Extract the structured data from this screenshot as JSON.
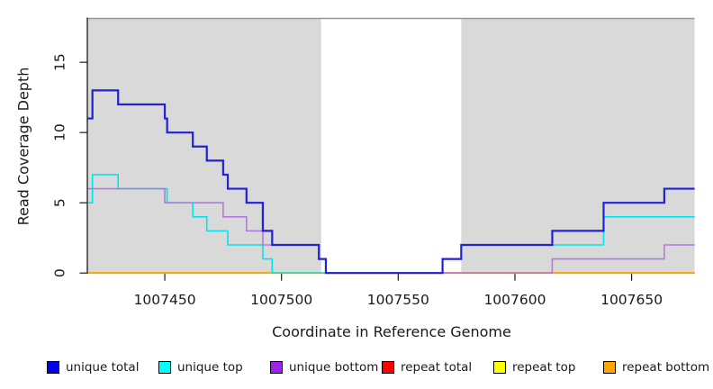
{
  "chart_data": {
    "type": "line",
    "subtype": "step-coverage",
    "title": "",
    "xlabel": "Coordinate in Reference Genome",
    "ylabel": "Read Coverage Depth",
    "xlim": [
      1007417,
      1007677
    ],
    "ylim": [
      0,
      18.15
    ],
    "grid": false,
    "legend_position": "bottom",
    "xticks": [
      {
        "value": 1007450,
        "label": "1007450"
      },
      {
        "value": 1007500,
        "label": "1007500"
      },
      {
        "value": 1007550,
        "label": "1007550"
      },
      {
        "value": 1007600,
        "label": "1007600"
      },
      {
        "value": 1007650,
        "label": "1007650"
      }
    ],
    "yticks": [
      {
        "value": 0,
        "label": "0"
      },
      {
        "value": 5,
        "label": "5"
      },
      {
        "value": 10,
        "label": "10"
      },
      {
        "value": 15,
        "label": "15"
      }
    ],
    "shaded_regions": [
      {
        "x0": 1007417,
        "x1": 1007517,
        "color": "#d9d9d9"
      },
      {
        "x0": 1007577,
        "x1": 1007677,
        "color": "#d9d9d9"
      }
    ],
    "top_border_color": "#979797",
    "axis_color": "#1a1a1a",
    "series": [
      {
        "name": "unique total",
        "color": "#2121d6",
        "line_width": 2.2,
        "steps": [
          [
            1007417,
            11
          ],
          [
            1007419,
            13
          ],
          [
            1007430,
            12
          ],
          [
            1007450,
            11
          ],
          [
            1007451,
            10
          ],
          [
            1007462,
            9
          ],
          [
            1007468,
            8
          ],
          [
            1007475,
            7
          ],
          [
            1007477,
            6
          ],
          [
            1007485,
            5
          ],
          [
            1007492,
            3
          ],
          [
            1007496,
            2
          ],
          [
            1007516,
            1
          ],
          [
            1007519,
            0
          ],
          [
            1007569,
            1
          ],
          [
            1007577,
            2
          ],
          [
            1007616,
            3
          ],
          [
            1007638,
            5
          ],
          [
            1007664,
            6
          ]
        ]
      },
      {
        "name": "unique top",
        "color": "#00e4ef",
        "line_width": 1.6,
        "steps": [
          [
            1007417,
            5
          ],
          [
            1007419,
            7
          ],
          [
            1007430,
            6
          ],
          [
            1007451,
            5
          ],
          [
            1007462,
            4
          ],
          [
            1007468,
            3
          ],
          [
            1007477,
            2
          ],
          [
            1007492,
            1
          ],
          [
            1007496,
            0
          ],
          [
            1007569,
            1
          ],
          [
            1007577,
            2
          ],
          [
            1007638,
            4
          ]
        ]
      },
      {
        "name": "unique bottom",
        "color": "#b477e2",
        "line_width": 1.6,
        "steps": [
          [
            1007417,
            6
          ],
          [
            1007450,
            5
          ],
          [
            1007475,
            4
          ],
          [
            1007485,
            3
          ],
          [
            1007492,
            2
          ],
          [
            1007516,
            1
          ],
          [
            1007519,
            0
          ],
          [
            1007616,
            1
          ],
          [
            1007664,
            2
          ]
        ]
      },
      {
        "name": "repeat total",
        "color": "#d44d5f",
        "line_width": 1.6,
        "steps": [
          [
            1007417,
            0
          ]
        ]
      },
      {
        "name": "repeat top",
        "color": "#ffff00",
        "line_width": 1.6,
        "steps": [
          [
            1007417,
            0
          ]
        ]
      },
      {
        "name": "repeat bottom",
        "color": "#ffa500",
        "line_width": 1.8,
        "steps": [
          [
            1007417,
            0
          ]
        ]
      }
    ],
    "zero_line_overrides": [
      {
        "x0": 1007496,
        "x1": 1007517,
        "color": "#7dc87d"
      },
      {
        "x0": 1007569,
        "x1": 1007616,
        "color": "#d44d5f"
      }
    ]
  },
  "legend": {
    "items": [
      {
        "label": "unique total",
        "color": "#0000f5"
      },
      {
        "label": "unique top",
        "color": "#00ffff"
      },
      {
        "label": "unique bottom",
        "color": "#a020f0"
      },
      {
        "label": "repeat total",
        "color": "#ff0000"
      },
      {
        "label": "repeat top",
        "color": "#ffff00"
      },
      {
        "label": "repeat bottom",
        "color": "#ffa500"
      }
    ]
  }
}
